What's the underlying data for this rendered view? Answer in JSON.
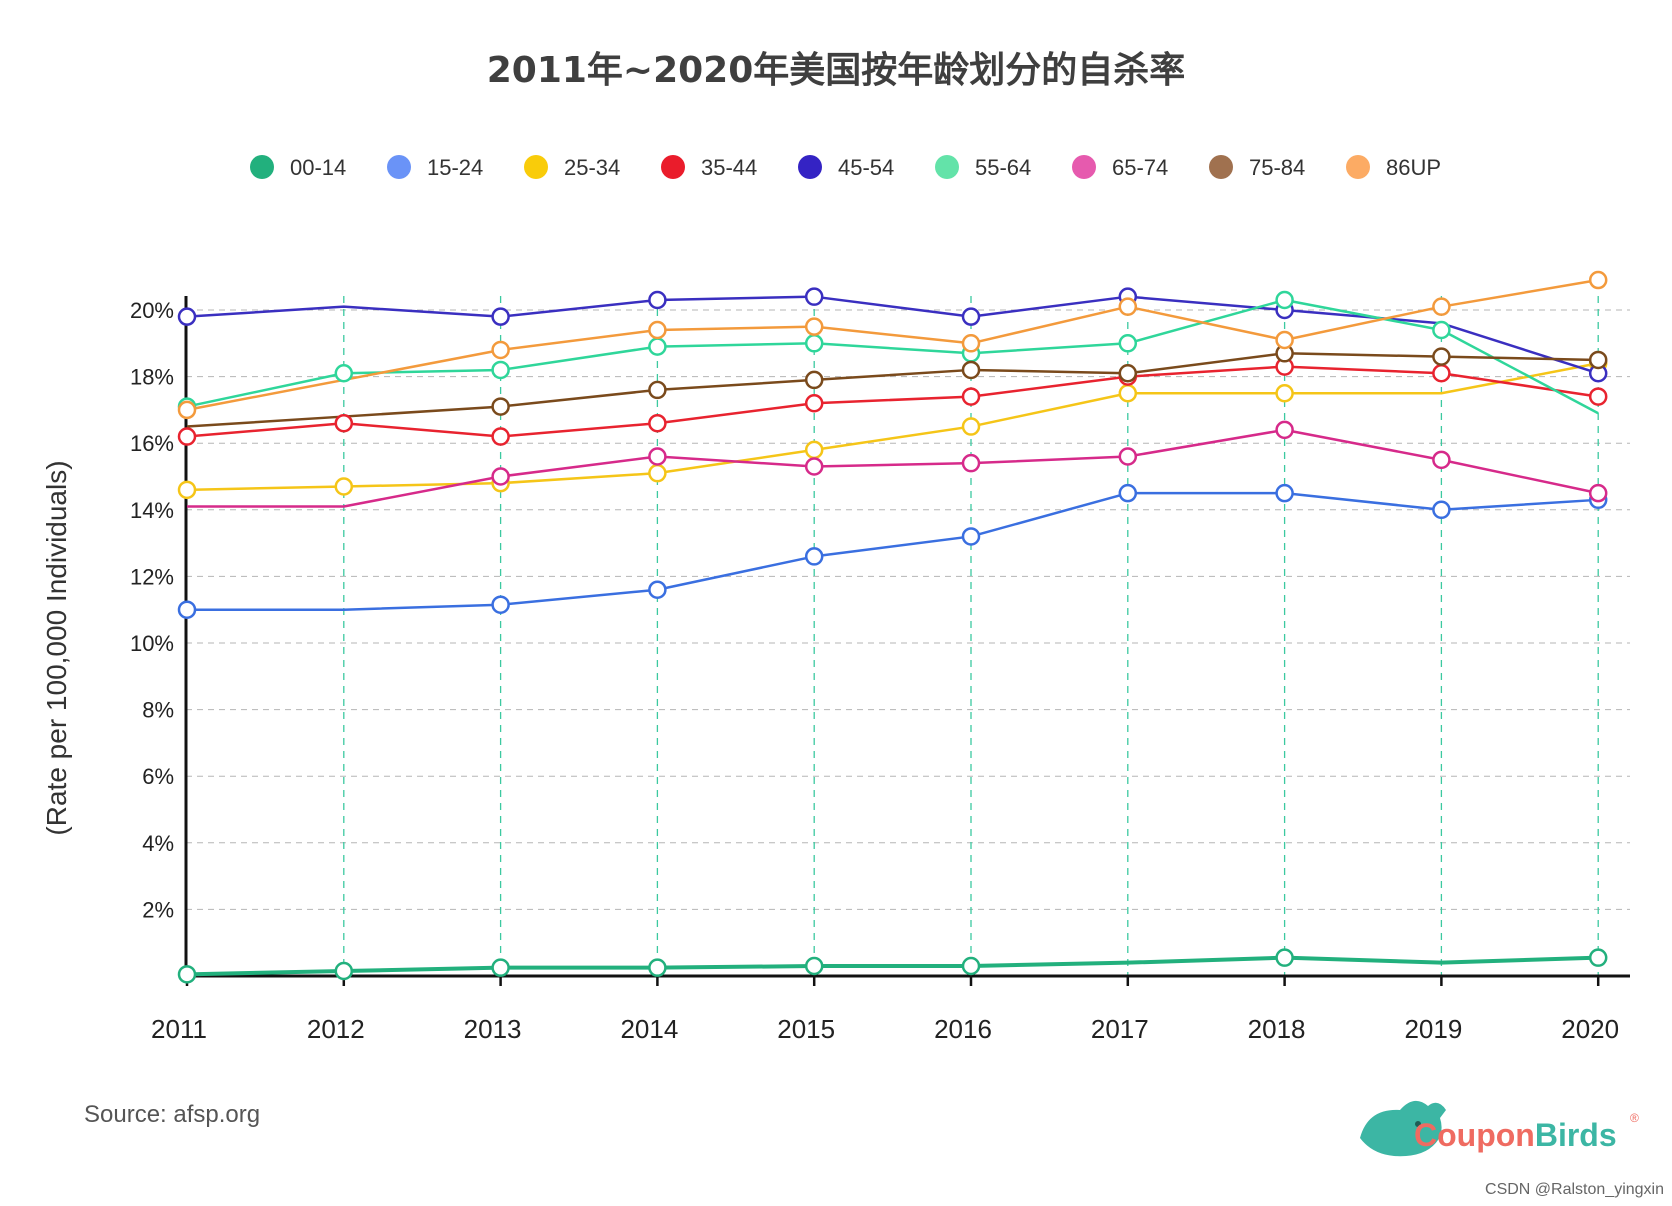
{
  "chart_data": {
    "type": "line",
    "title": "2011年~2020年美国按年龄划分的自杀率",
    "xlabel": "",
    "ylabel": "(Rate per 100,000 Individuals)",
    "categories": [
      "2011",
      "2012",
      "2013",
      "2014",
      "2015",
      "2016",
      "2017",
      "2018",
      "2019",
      "2020"
    ],
    "y_ticks": [
      "2%",
      "4%",
      "6%",
      "8%",
      "10%",
      "12%",
      "14%",
      "16%",
      "18%",
      "20%"
    ],
    "ylim": [
      0,
      21
    ],
    "grid": true,
    "legend_position": "top",
    "series": [
      {
        "name": "00-14",
        "color": "#22b07d",
        "values": [
          0.05,
          0.15,
          0.25,
          0.25,
          0.3,
          0.3,
          0.4,
          0.55,
          0.4,
          0.55
        ]
      },
      {
        "name": "15-24",
        "color": "#3a6fe0",
        "values": [
          11.0,
          11.0,
          11.15,
          11.6,
          12.6,
          13.2,
          14.5,
          14.5,
          14.0,
          14.3
        ]
      },
      {
        "name": "25-34",
        "color": "#f5c518",
        "values": [
          14.6,
          14.7,
          14.8,
          15.1,
          15.8,
          16.5,
          17.5,
          17.5,
          17.5,
          18.4
        ]
      },
      {
        "name": "35-44",
        "color": "#e8232f",
        "values": [
          16.2,
          16.6,
          16.2,
          16.6,
          17.2,
          17.4,
          18.0,
          18.3,
          18.1,
          17.4
        ]
      },
      {
        "name": "45-54",
        "color": "#3a2fc0",
        "values": [
          19.8,
          20.1,
          19.8,
          20.3,
          20.4,
          19.8,
          20.4,
          20.0,
          19.6,
          18.1
        ]
      },
      {
        "name": "55-64",
        "color": "#2fd69a",
        "values": [
          17.1,
          18.1,
          18.2,
          18.9,
          19.0,
          18.7,
          19.0,
          20.3,
          19.4,
          16.9
        ]
      },
      {
        "name": "65-74",
        "color": "#d62a8a",
        "values": [
          14.1,
          14.1,
          15.0,
          15.6,
          15.3,
          15.4,
          15.6,
          16.4,
          15.5,
          14.5
        ]
      },
      {
        "name": "75-84",
        "color": "#7a4a1c",
        "values": [
          16.5,
          16.8,
          17.1,
          17.6,
          17.9,
          18.2,
          18.1,
          18.7,
          18.6,
          18.5
        ]
      },
      {
        "name": "86UP",
        "color": "#f39a3c",
        "values": [
          17.0,
          17.9,
          18.8,
          19.4,
          19.5,
          19.0,
          20.1,
          19.1,
          20.1,
          20.9
        ]
      }
    ],
    "marked_points": [
      [
        0,
        1,
        2,
        3,
        4,
        5,
        7,
        9
      ],
      [
        0,
        2,
        3,
        4,
        5,
        6,
        7,
        8,
        9
      ],
      [
        0,
        1,
        2,
        3,
        4,
        5,
        6,
        7,
        9
      ],
      [
        0,
        1,
        2,
        3,
        4,
        5,
        6,
        7,
        8,
        9
      ],
      [
        0,
        2,
        3,
        4,
        5,
        6,
        7,
        9
      ],
      [
        0,
        1,
        2,
        3,
        4,
        5,
        6,
        7,
        8
      ],
      [
        2,
        3,
        4,
        5,
        6,
        7,
        8,
        9
      ],
      [
        2,
        3,
        4,
        5,
        6,
        7,
        8,
        9
      ],
      [
        0,
        2,
        3,
        4,
        5,
        6,
        7,
        8,
        9
      ]
    ],
    "legend_colors": [
      "#22b07d",
      "#6a93f7",
      "#f9cc0a",
      "#ea1c2b",
      "#3423c4",
      "#63e3a9",
      "#e65aae",
      "#a0714f",
      "#fcab64"
    ]
  },
  "source": "Source: afsp.org",
  "logo": {
    "coupon": "Coupon",
    "birds": "Birds",
    "reg": "®"
  },
  "watermark": "CSDN @Ralston_yingxin"
}
